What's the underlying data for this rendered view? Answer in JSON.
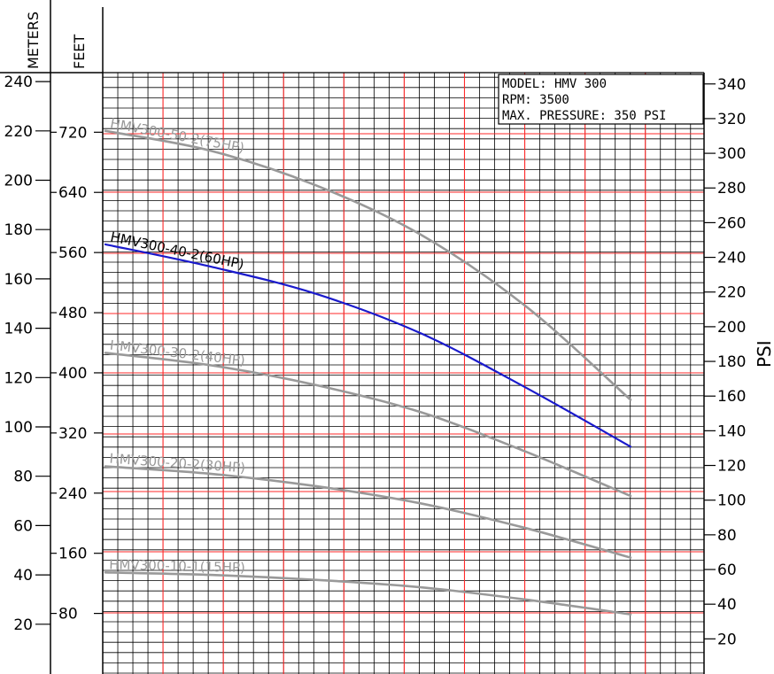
{
  "chart_data": {
    "type": "line",
    "title": "",
    "axes": {
      "meters": {
        "label": "METERS",
        "ticks": [
          20,
          40,
          60,
          80,
          100,
          120,
          140,
          160,
          180,
          200,
          220,
          240
        ],
        "range": [
          0,
          245
        ]
      },
      "feet": {
        "label": "FEET",
        "ticks": [
          80,
          160,
          240,
          320,
          400,
          480,
          560,
          640,
          720
        ]
      },
      "psi": {
        "label": "PSI",
        "ticks": [
          20,
          40,
          60,
          80,
          100,
          120,
          140,
          160,
          180,
          200,
          220,
          240,
          260,
          280,
          300,
          320,
          340
        ]
      },
      "x": {
        "label": "",
        "range": [
          0,
          1
        ],
        "note": "unlabeled flow axis"
      }
    },
    "grid": true,
    "info_box": {
      "lines": [
        "MODEL: HMV 300",
        "RPM: 3500",
        "MAX. PRESSURE: 350 PSI"
      ],
      "position": "top-right"
    },
    "series": [
      {
        "name": "HMV300-50-2(75HP)",
        "color": "#999999",
        "x": [
          0,
          0.2,
          0.4,
          0.6,
          0.8,
          1.0
        ],
        "meters": [
          220,
          212,
          198,
          178,
          149,
          111
        ]
      },
      {
        "name": "HMV300-40-2(60HP)",
        "color": "#1a1acc",
        "x": [
          0,
          0.2,
          0.4,
          0.6,
          0.8,
          1.0
        ],
        "meters": [
          174,
          165,
          154,
          138,
          116,
          92
        ]
      },
      {
        "name": "HMV300-30-2(40HP)",
        "color": "#999999",
        "x": [
          0,
          0.2,
          0.4,
          0.6,
          0.8,
          1.0
        ],
        "meters": [
          130,
          125,
          117,
          106,
          90,
          72
        ]
      },
      {
        "name": "HMV300-20-2(30HP)",
        "color": "#999999",
        "x": [
          0,
          0.2,
          0.4,
          0.6,
          0.8,
          1.0
        ],
        "meters": [
          84,
          81,
          76,
          69,
          59,
          47
        ]
      },
      {
        "name": "HMV300-10-1(15HP)",
        "color": "#999999",
        "x": [
          0,
          0.2,
          0.4,
          0.6,
          0.8,
          1.0
        ],
        "meters": [
          41,
          40,
          38,
          35,
          30,
          24
        ]
      }
    ],
    "colors": {
      "major_grid": "#ff2a2a",
      "minor_grid": "#000000",
      "axis": "#000000"
    }
  }
}
